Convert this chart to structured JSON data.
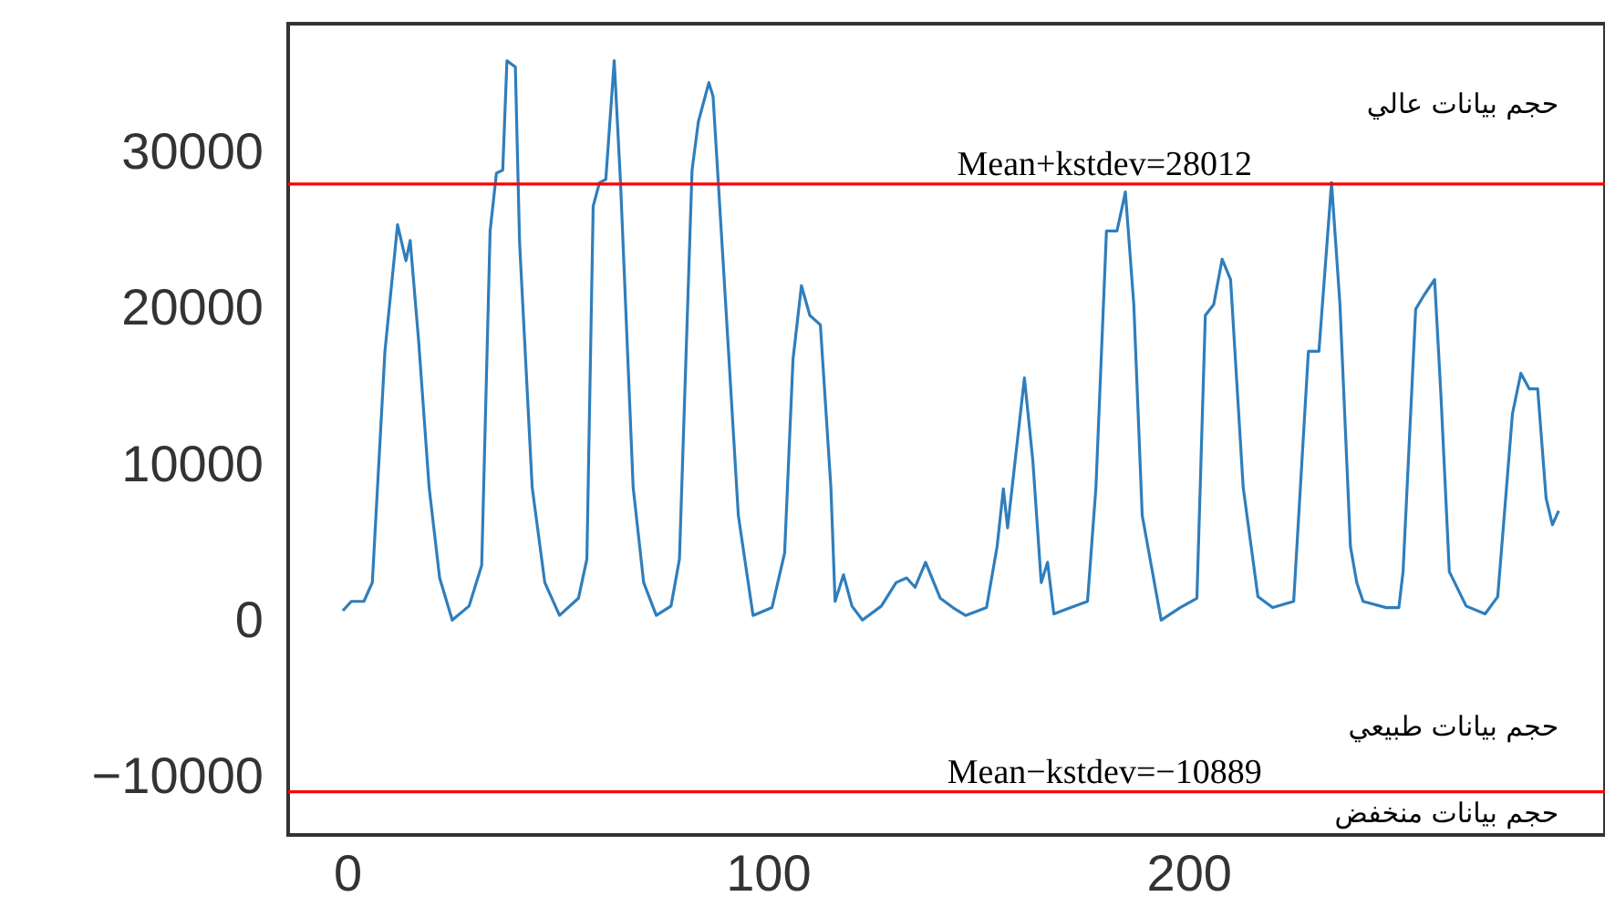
{
  "chart_data": {
    "type": "line",
    "x": [
      -1,
      1,
      4,
      6,
      9,
      12,
      14,
      15,
      17,
      19.5,
      22,
      25,
      29,
      32,
      34,
      35.5,
      37,
      38,
      40,
      41,
      44,
      47,
      50.5,
      55,
      57,
      58.5,
      60,
      61.5,
      63.5,
      65,
      68,
      70.5,
      73.5,
      77,
      79,
      82,
      83.5,
      86,
      87,
      90,
      93,
      96.5,
      101,
      104,
      106,
      108,
      110,
      112.5,
      115,
      116,
      118,
      120,
      122.5,
      127,
      130.5,
      133,
      135,
      137.5,
      141,
      144,
      147,
      152,
      154.5,
      156,
      157,
      161,
      163,
      165,
      166.5,
      168,
      172,
      176,
      178,
      180.5,
      183,
      185,
      187,
      189,
      193.5,
      198,
      202,
      204,
      206,
      208,
      210,
      213,
      216.5,
      220,
      225,
      228.5,
      231,
      234,
      236,
      238.5,
      240,
      241.5,
      247,
      250,
      251,
      254,
      256,
      258.5,
      260,
      262,
      266,
      270.5,
      273.5,
      277,
      279,
      281,
      283,
      285,
      286.5,
      288
    ],
    "series": [
      {
        "color": "#2f7ebc",
        "values": [
          700,
          1300,
          1300,
          2500,
          17300,
          25400,
          23100,
          24400,
          18000,
          8600,
          2800,
          100,
          1000,
          3600,
          25000,
          28700,
          28900,
          35900,
          35500,
          24300,
          8600,
          2500,
          400,
          1500,
          4000,
          26600,
          28100,
          28300,
          35900,
          28100,
          8600,
          2500,
          400,
          1000,
          4000,
          28900,
          32000,
          34500,
          33600,
          20300,
          6800,
          400,
          900,
          4400,
          16800,
          21500,
          19600,
          19000,
          8600,
          1300,
          3000,
          1000,
          100,
          1000,
          2500,
          2800,
          2200,
          3800,
          1500,
          900,
          400,
          900,
          4800,
          8500,
          6000,
          15600,
          10300,
          2500,
          3800,
          500,
          900,
          1300,
          8600,
          25000,
          25000,
          27500,
          20300,
          6800,
          100,
          900,
          1500,
          19600,
          20300,
          23200,
          21900,
          8600,
          1600,
          900,
          1300,
          17300,
          17300,
          28100,
          20300,
          4800,
          2500,
          1300,
          900,
          900,
          3200,
          20000,
          20900,
          21900,
          14500,
          3200,
          1000,
          500,
          1600,
          13300,
          15900,
          14900,
          14900,
          7900,
          6200,
          7100
        ]
      }
    ],
    "xlim": [
      -14,
      299
    ],
    "ylim": [
      -13650,
      38270
    ],
    "xticks": [
      0,
      100,
      200
    ],
    "yticks": [
      -10000,
      0,
      10000,
      20000,
      30000
    ],
    "grid": false,
    "line_style": "solid",
    "marker": "none",
    "ref_lines": [
      {
        "axis": "y",
        "value": 28012,
        "label": "Mean+kstdev=28012",
        "color": "#ff0000"
      },
      {
        "axis": "y",
        "value": -10889,
        "label": "Mean−kstdev=−10889",
        "color": "#ff0000"
      }
    ],
    "annotations": [
      "حجم بيانات عالي",
      "حجم بيانات طبيعي",
      "حجم بيانات منخفض"
    ]
  }
}
